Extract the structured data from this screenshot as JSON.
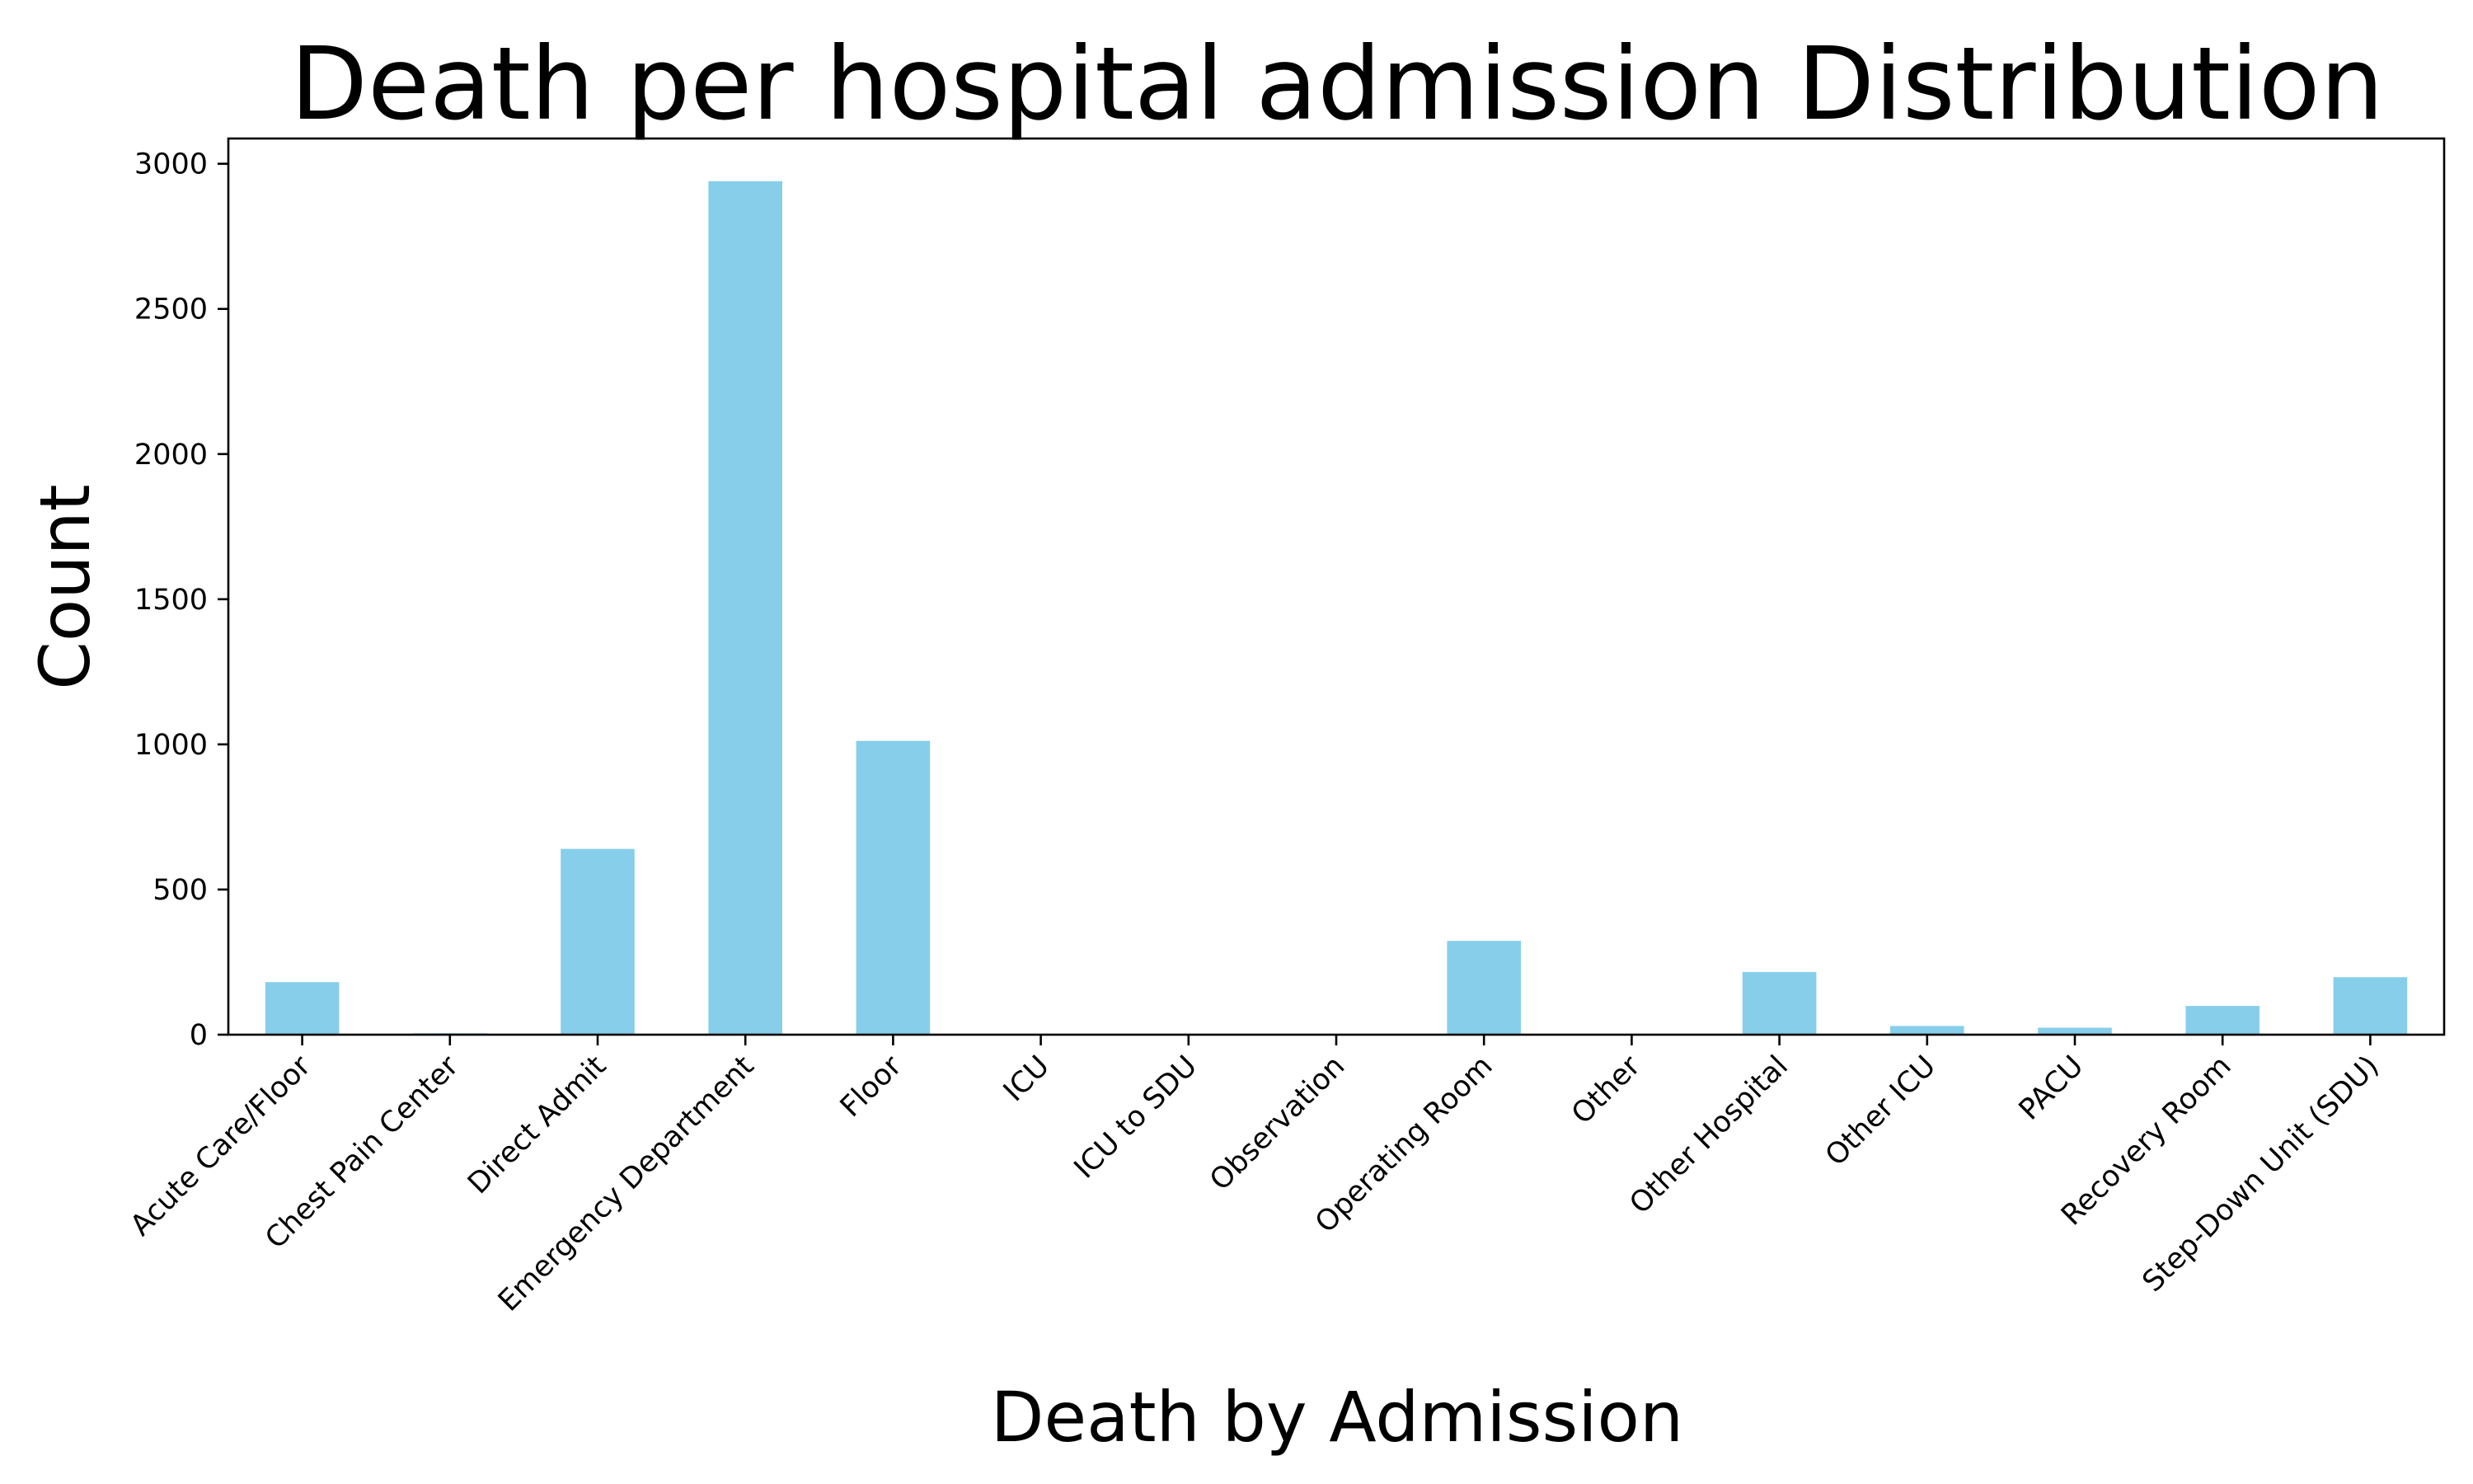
{
  "chart_data": {
    "type": "bar",
    "title": "Death per hospital admission Distribution",
    "xlabel": "Death by Admission",
    "ylabel": "Count",
    "categories": [
      "Acute Care/Floor",
      "Chest Pain Center",
      "Direct Admit",
      "Emergency Department",
      "Floor",
      "ICU",
      "ICU to SDU",
      "Observation",
      "Operating Room",
      "Other",
      "Other Hospital",
      "Other ICU",
      "PACU",
      "Recovery Room",
      "Step-Down Unit (SDU)"
    ],
    "values": [
      181,
      5,
      640,
      2940,
      1012,
      1,
      1,
      1,
      323,
      1,
      216,
      30,
      24,
      99,
      198
    ],
    "ylim": [
      0,
      3087
    ],
    "yticks": [
      0,
      500,
      1000,
      1500,
      2000,
      2500,
      3000
    ],
    "grid": false,
    "bar_color": "#87CEEB",
    "legend": null
  }
}
